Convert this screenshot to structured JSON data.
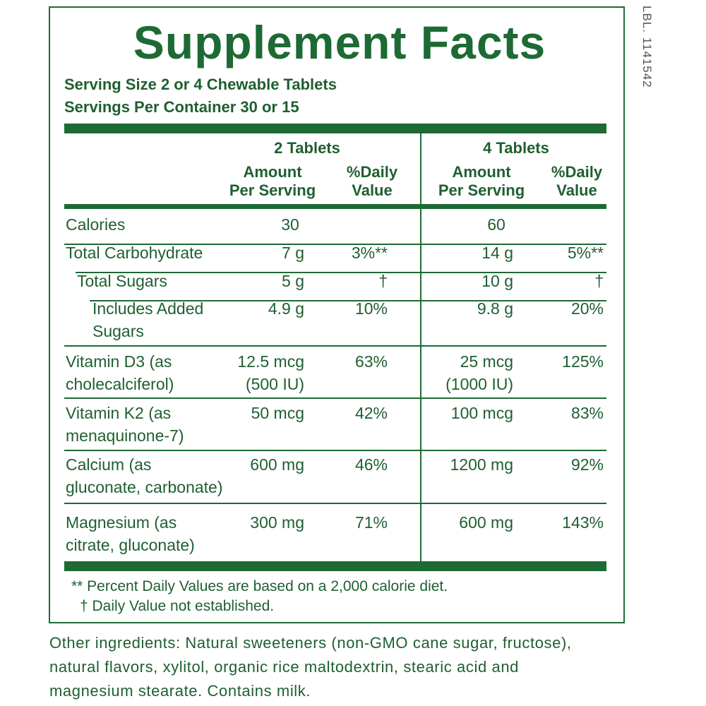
{
  "title": "Supplement Facts",
  "label_code": "LBL. 1141542",
  "serving_size": "Serving Size 2 or 4 Chewable Tablets",
  "servings_per_container": "Servings Per Container 30 or 15",
  "headers": {
    "group1": "2 Tablets",
    "group2": "4 Tablets",
    "amount_line1": "Amount",
    "amount_line2": "Per Serving",
    "dv_line1": "%Daily",
    "dv_line2": "Value"
  },
  "rows": [
    {
      "name1": "Calories",
      "name2": "",
      "a2": "30",
      "a2b": "",
      "dv2": "",
      "a4": "60",
      "a4b": "",
      "dv4": ""
    },
    {
      "name1": "Total Carbohydrate",
      "name2": "",
      "a2": "7 g",
      "a2b": "",
      "dv2": "3%**",
      "a4": "14 g",
      "a4b": "",
      "dv4": "5%**"
    },
    {
      "name1": "Total Sugars",
      "name2": "",
      "a2": "5 g",
      "a2b": "",
      "dv2": "†",
      "a4": "10 g",
      "a4b": "",
      "dv4": "†"
    },
    {
      "name1": "Includes Added",
      "name2": "Sugars",
      "a2": "4.9 g",
      "a2b": "",
      "dv2": "10%",
      "a4": "9.8 g",
      "a4b": "",
      "dv4": "20%"
    },
    {
      "name1": "Vitamin D3 (as",
      "name2": "cholecalciferol)",
      "a2": "12.5 mcg",
      "a2b": "(500 IU)",
      "dv2": "63%",
      "a4": "25 mcg",
      "a4b": "(1000 IU)",
      "dv4": "125%"
    },
    {
      "name1": "Vitamin K2 (as",
      "name2": "menaquinone-7)",
      "a2": "50 mcg",
      "a2b": "",
      "dv2": "42%",
      "a4": "100 mcg",
      "a4b": "",
      "dv4": "83%"
    },
    {
      "name1": "Calcium (as",
      "name2": "gluconate, carbonate)",
      "a2": "600 mg",
      "a2b": "",
      "dv2": "46%",
      "a4": "1200 mg",
      "a4b": "",
      "dv4": "92%"
    },
    {
      "name1": "Magnesium (as",
      "name2": "citrate, gluconate)",
      "a2": "300 mg",
      "a2b": "",
      "dv2": "71%",
      "a4": "600 mg",
      "a4b": "",
      "dv4": "143%"
    }
  ],
  "footnotes": {
    "dv_note": "** Percent Daily Values are based on a 2,000 calorie diet.",
    "dagger_note": "† Daily Value not established."
  },
  "ingredients": {
    "line1": "Other ingredients: Natural sweeteners (non-GMO cane sugar, fructose),",
    "line2": "natural flavors, xylitol, organic rice maltodextrin, stearic acid and",
    "line3": "magnesium stearate. Contains milk."
  },
  "colors": {
    "brand_green": "#1d6a34",
    "text_green": "#1f5f31"
  }
}
